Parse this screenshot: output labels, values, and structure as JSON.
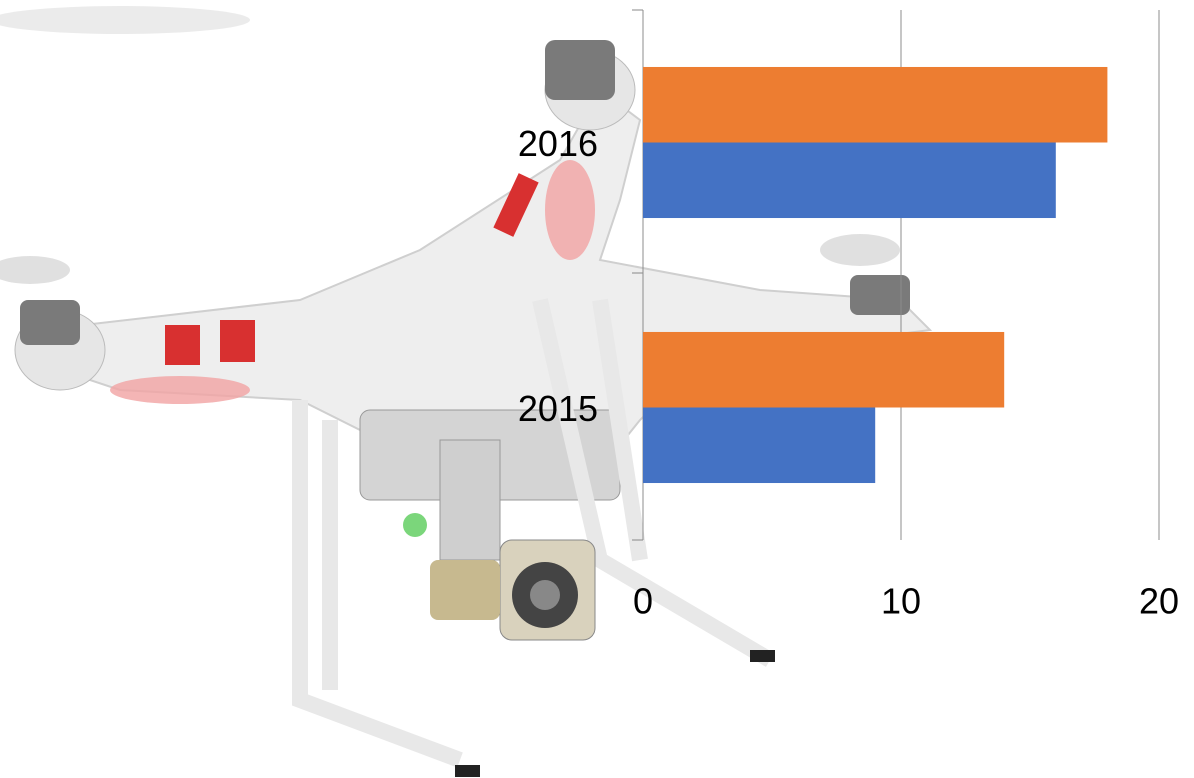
{
  "chart_data": {
    "type": "hbar",
    "categories": [
      "2015",
      "2016"
    ],
    "series": [
      {
        "color": "#4472c4",
        "values": [
          9,
          16
        ]
      },
      {
        "color": "#ed7d31",
        "values": [
          14,
          18
        ]
      }
    ],
    "xlim": [
      0,
      20
    ],
    "xticks": [
      0,
      10,
      20
    ],
    "grid": true
  }
}
